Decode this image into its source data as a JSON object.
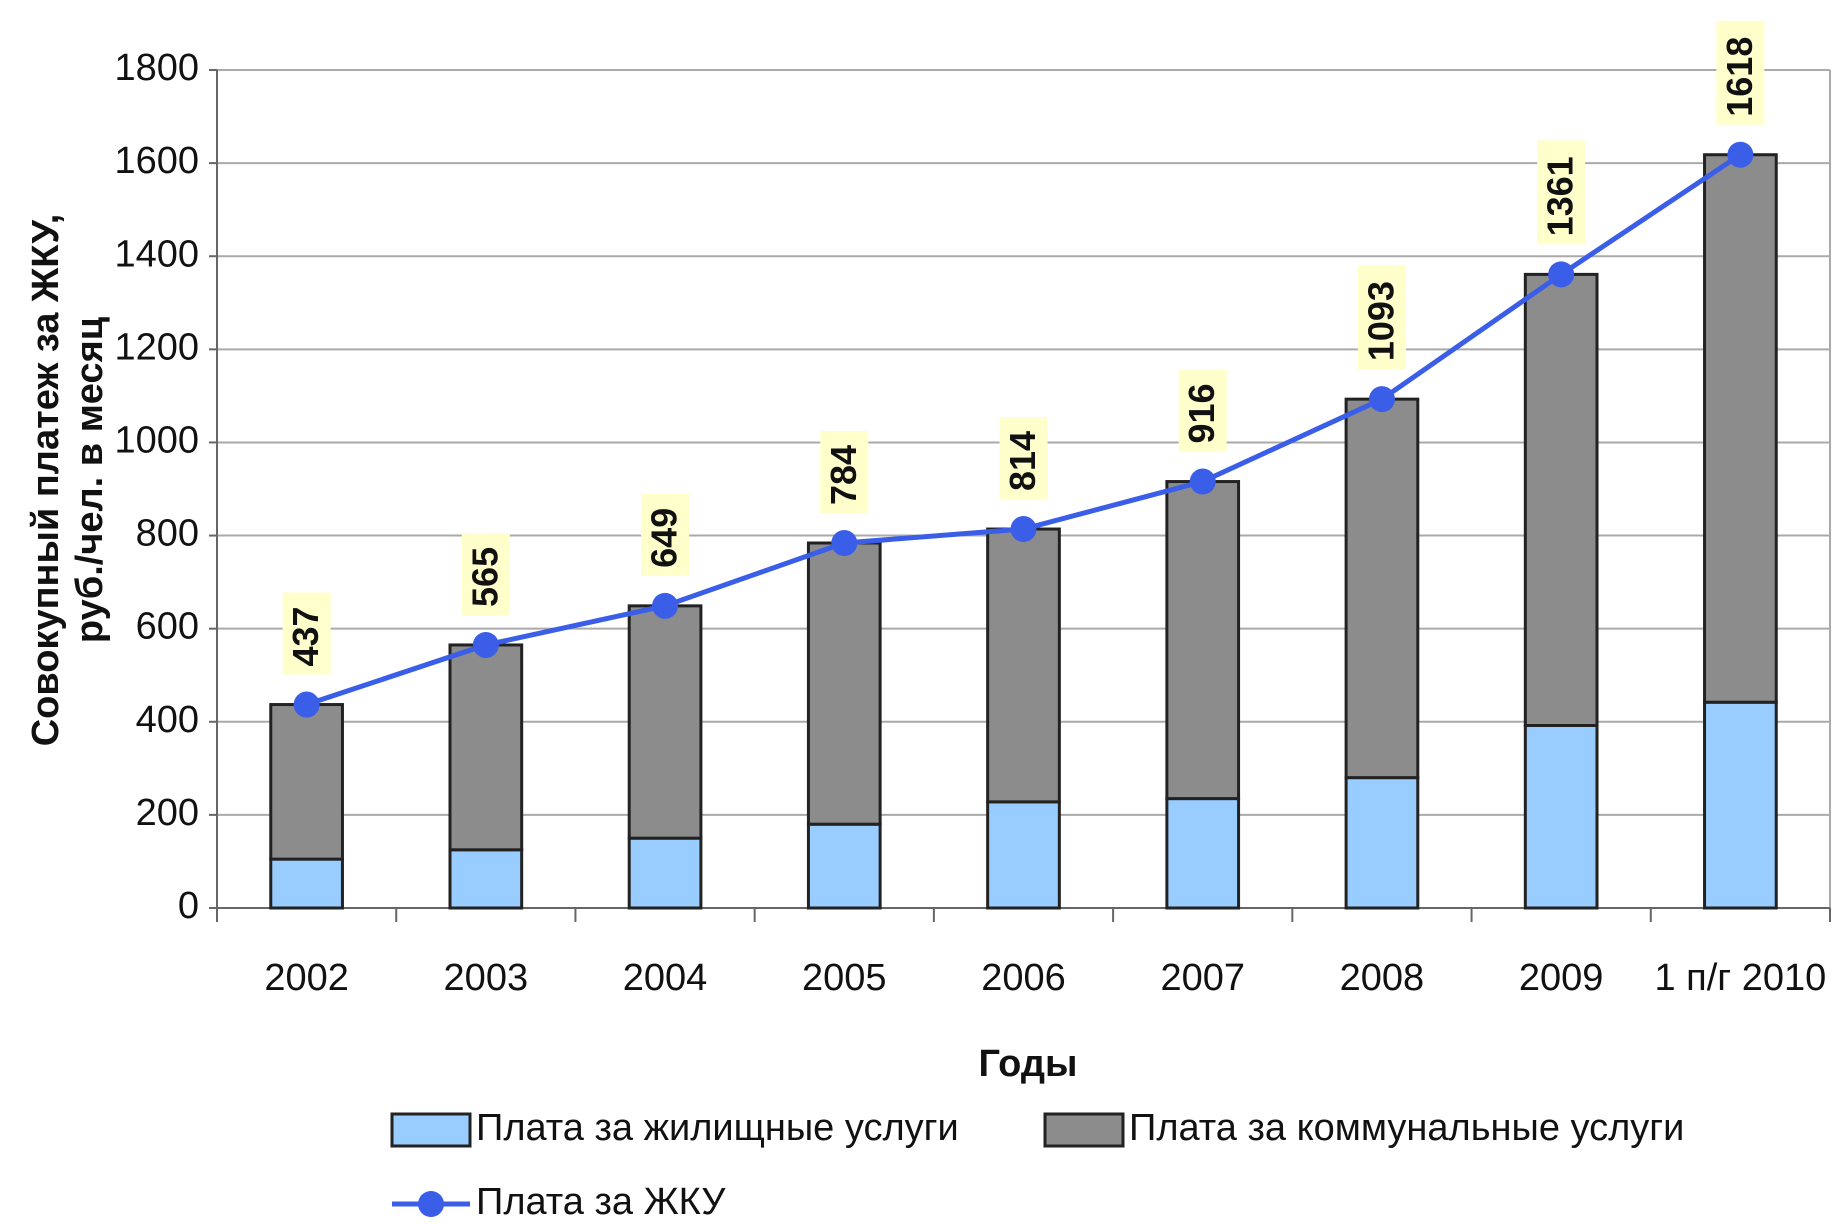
{
  "chart_data": {
    "type": "bar",
    "y_label": [
      "Совокупный платеж за ЖКУ,",
      "руб./чел. в месяц"
    ],
    "x_label": "Годы",
    "categories": [
      "2002",
      "2003",
      "2004",
      "2005",
      "2006",
      "2007",
      "2008",
      "2009",
      "1 п/г 2010"
    ],
    "series": [
      {
        "name": "Плата за жилищные услуги",
        "color": "#99ccff",
        "stack": true,
        "values": [
          105,
          125,
          150,
          180,
          228,
          235,
          280,
          392,
          442
        ]
      },
      {
        "name": "Плата за коммунальные услуги",
        "color": "#8c8c8c",
        "stack": true,
        "values": [
          332,
          440,
          499,
          604,
          586,
          681,
          813,
          969,
          1176
        ]
      },
      {
        "name": "Плата за ЖКУ",
        "color": "#3b5ee8",
        "kind": "line",
        "values": [
          437,
          565,
          649,
          784,
          814,
          916,
          1093,
          1361,
          1618
        ]
      }
    ],
    "ylim": [
      0,
      1800
    ],
    "yticks": [
      0,
      200,
      400,
      600,
      800,
      1000,
      1200,
      1400,
      1600,
      1800
    ],
    "grid": true
  }
}
